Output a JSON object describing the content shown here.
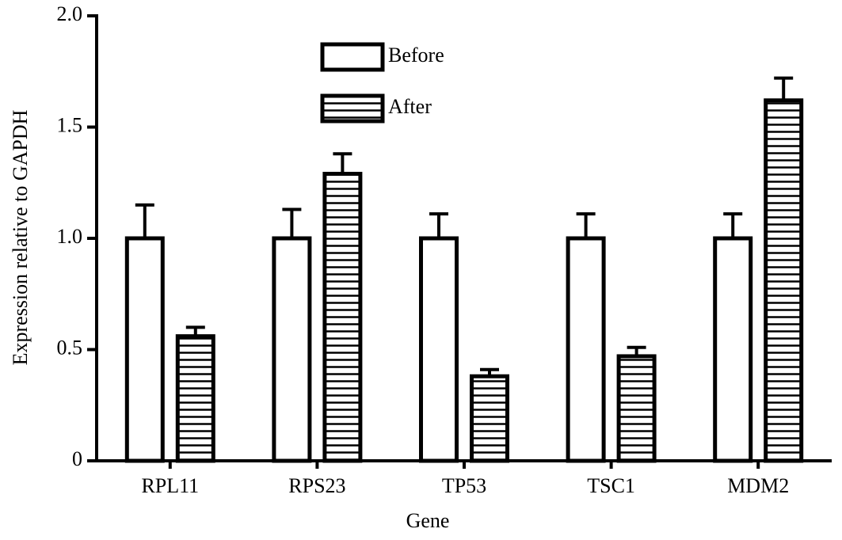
{
  "chart_data": {
    "type": "bar",
    "x_label": "Gene",
    "y_label": "Expression relative to GAPDH",
    "categories": [
      "RPL11",
      "RPS23",
      "TP53",
      "TSC1",
      "MDM2"
    ],
    "series": [
      {
        "name": "Before",
        "color": "#ffffff",
        "pattern": "none",
        "values": [
          1.0,
          1.0,
          1.0,
          1.0,
          1.0
        ],
        "errors": [
          0.15,
          0.13,
          0.11,
          0.11,
          0.11
        ]
      },
      {
        "name": "After",
        "color": "#ffffff",
        "pattern": "horizontal-lines",
        "values": [
          0.56,
          1.29,
          0.38,
          0.47,
          1.62
        ],
        "errors": [
          0.04,
          0.09,
          0.03,
          0.04,
          0.1
        ]
      }
    ],
    "ylim": [
      0,
      2.0
    ],
    "yticks": [
      0,
      0.5,
      {
        "value": 1.0,
        "label": "1.0"
      },
      1.5,
      {
        "value": 2.0,
        "label": "2.0"
      }
    ],
    "legend": "top-center",
    "grid": false
  }
}
